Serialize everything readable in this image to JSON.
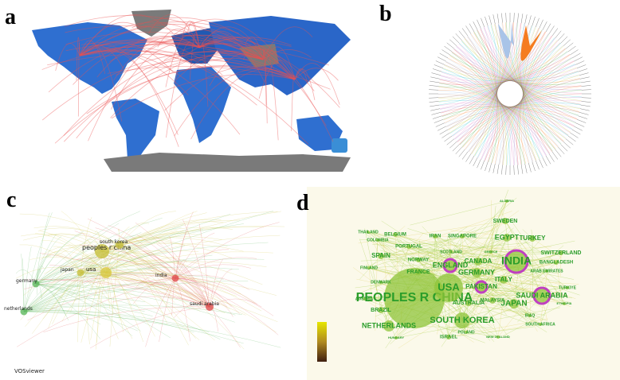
{
  "panels": {
    "a": {
      "label": "a"
    },
    "b": {
      "label": "b"
    },
    "c": {
      "label": "c",
      "watermark": "VOSviewer",
      "nodes": [
        {
          "label": "peoples r china"
        },
        {
          "label": "usa"
        },
        {
          "label": "south korea"
        },
        {
          "label": "japan"
        },
        {
          "label": "germany"
        },
        {
          "label": "netherlands"
        },
        {
          "label": "saudi arabia"
        },
        {
          "label": "india"
        }
      ]
    },
    "d": {
      "label": "d",
      "nodes": [
        {
          "label": "PEOPLES R CHINA"
        },
        {
          "label": "USA"
        },
        {
          "label": "INDIA"
        },
        {
          "label": "SOUTH KOREA"
        },
        {
          "label": "GERMANY"
        },
        {
          "label": "JAPAN"
        },
        {
          "label": "SAUDI ARABIA"
        },
        {
          "label": "ENGLAND"
        },
        {
          "label": "PAKISTAN"
        },
        {
          "label": "ITALY"
        },
        {
          "label": "CANADA"
        },
        {
          "label": "AUSTRALIA"
        },
        {
          "label": "MALAYSIA"
        },
        {
          "label": "EGYPT"
        },
        {
          "label": "TURKEY"
        },
        {
          "label": "SWEDEN"
        },
        {
          "label": "SWITZERLAND"
        },
        {
          "label": "BANGLADESH"
        },
        {
          "label": "NETHERLANDS"
        },
        {
          "label": "BRAZIL"
        },
        {
          "label": "SPAIN"
        },
        {
          "label": "FRANCE"
        },
        {
          "label": "NORWAY"
        },
        {
          "label": "PORTUGAL"
        },
        {
          "label": "BELGIUM"
        },
        {
          "label": "IRAN"
        },
        {
          "label": "SINGAPORE"
        },
        {
          "label": "THAILAND"
        },
        {
          "label": "COLOMBIA"
        },
        {
          "label": "FINLAND"
        },
        {
          "label": "DENMARK"
        },
        {
          "label": "AUSTRIA"
        },
        {
          "label": "IRAQ"
        },
        {
          "label": "SOUTH AFRICA"
        },
        {
          "label": "ISRAEL"
        },
        {
          "label": "POLAND"
        },
        {
          "label": "HUNGARY"
        },
        {
          "label": "TURKIYE"
        },
        {
          "label": "ETHIOPIA"
        },
        {
          "label": "SCOTLAND"
        },
        {
          "label": "GREECE"
        },
        {
          "label": "ARAB EMIRATES"
        },
        {
          "label": "NEW ZEALAND"
        },
        {
          "label": "ALGERIA"
        }
      ]
    }
  }
}
